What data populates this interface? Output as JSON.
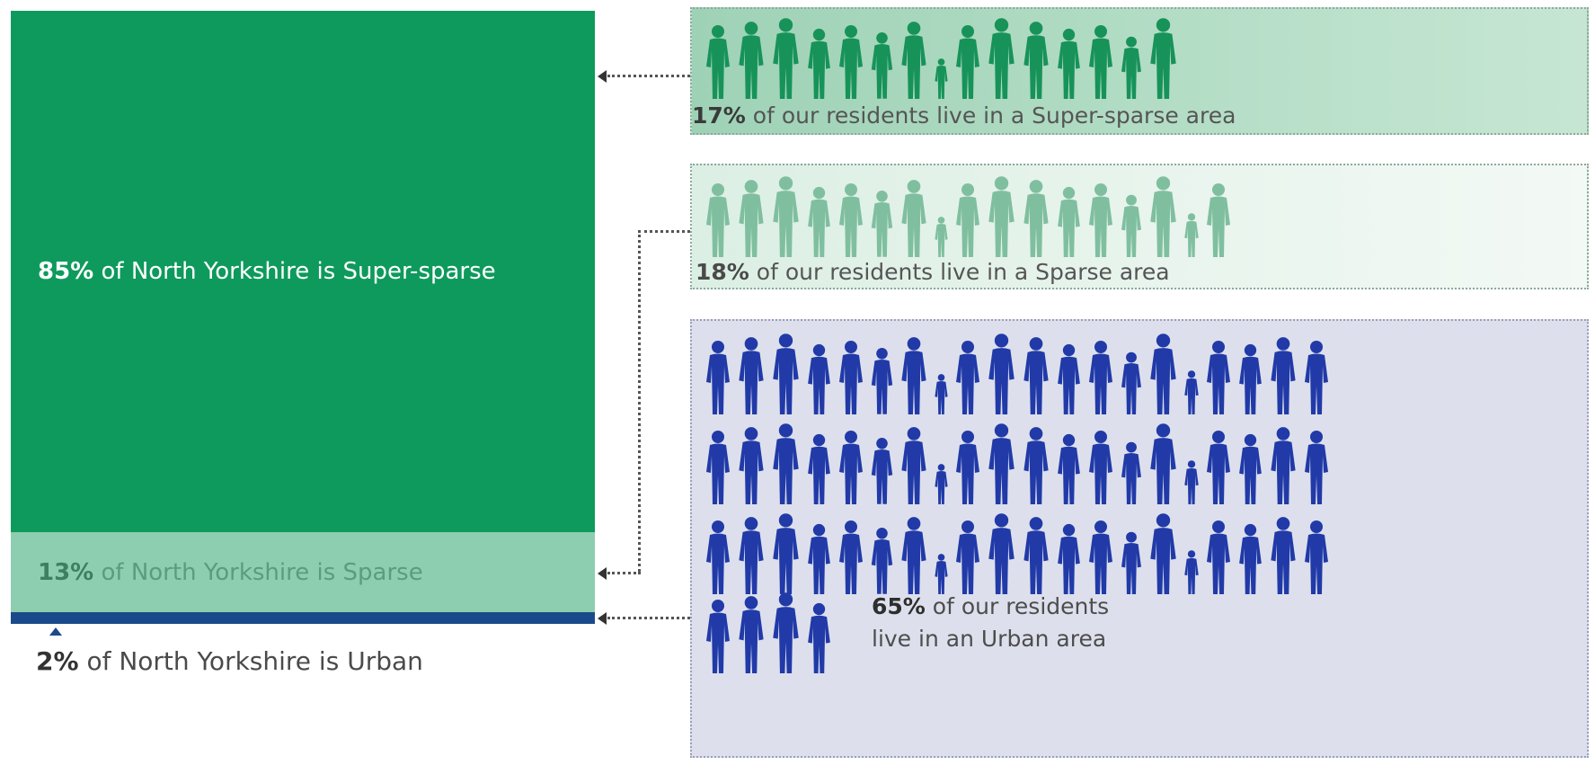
{
  "chart_data": {
    "type": "infographic",
    "land_share": {
      "unit": "%",
      "segments": [
        {
          "category": "Super-sparse",
          "value": 85,
          "pct_label": "85%",
          "text": " of North Yorkshire is Super-sparse",
          "color": "#0e9a5c"
        },
        {
          "category": "Sparse",
          "value": 13,
          "pct_label": "13%",
          "text": " of North Yorkshire is Sparse",
          "color": "#8dceb0"
        },
        {
          "category": "Urban",
          "value": 2,
          "pct_label": "2%",
          "text": " of North Yorkshire is Urban",
          "color": "#1b4a8a"
        }
      ]
    },
    "resident_share": {
      "unit": "%",
      "groups": [
        {
          "category": "Super-sparse",
          "value": 17,
          "pct_label": "17%",
          "text": " of our residents live in a Super-sparse area",
          "icon_color": "#17935a",
          "people_per_row": 15,
          "people_rows": 1
        },
        {
          "category": "Sparse",
          "value": 18,
          "pct_label": "18%",
          "text": " of our residents live in a Sparse area",
          "icon_color": "#7fbf9f",
          "people_per_row": 17,
          "people_rows": 1
        },
        {
          "category": "Urban",
          "value": 65,
          "pct_label": "65%",
          "text_line1": " of our residents",
          "text_line2": "live in an Urban area",
          "icon_color": "#213aa8",
          "people_per_row": 20,
          "people_rows": 3,
          "people_last_row": 4
        }
      ]
    }
  }
}
